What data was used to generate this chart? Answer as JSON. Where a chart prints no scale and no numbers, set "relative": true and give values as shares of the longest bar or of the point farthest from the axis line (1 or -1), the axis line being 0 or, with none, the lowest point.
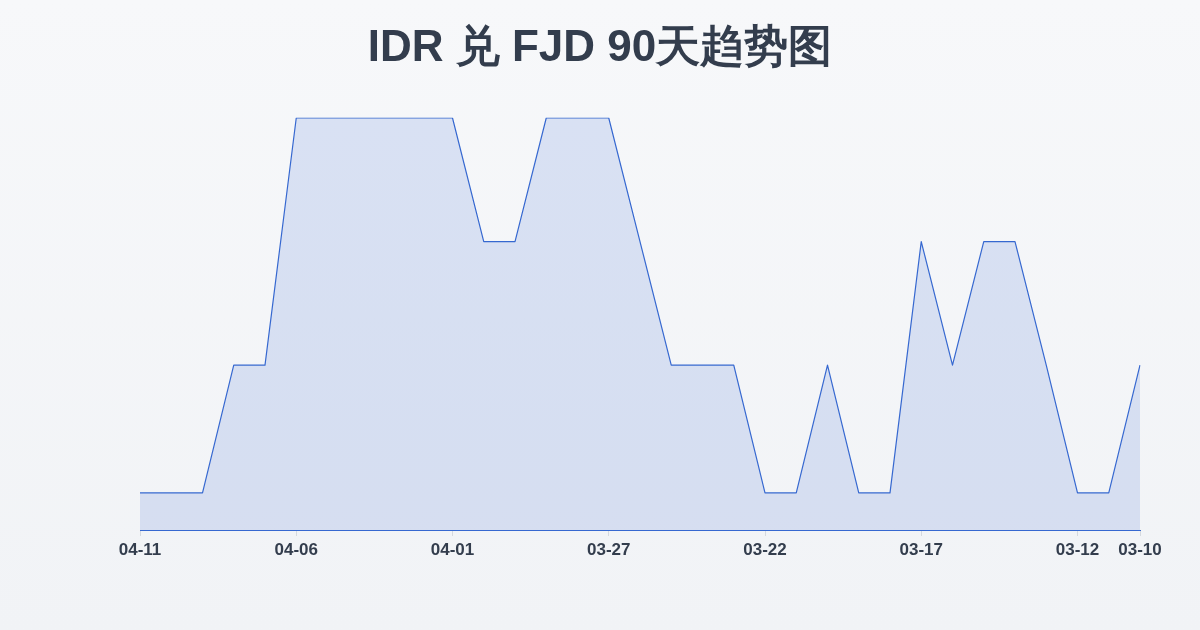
{
  "chart_data": {
    "type": "area",
    "title": "IDR 兑 FJD 90天趋势图",
    "categories": [
      "04-11",
      null,
      null,
      null,
      null,
      "04-06",
      null,
      null,
      null,
      null,
      "04-01",
      null,
      null,
      null,
      null,
      "03-27",
      null,
      null,
      null,
      null,
      "03-22",
      null,
      null,
      null,
      null,
      "03-17",
      null,
      null,
      null,
      null,
      "03-12",
      null,
      "03-10"
    ],
    "values": [
      0.09,
      0.09,
      0.09,
      0.4,
      0.4,
      1,
      1,
      1,
      1,
      1,
      1,
      0.7,
      0.7,
      1,
      1,
      1,
      0.7,
      0.4,
      0.4,
      0.4,
      0.09,
      0.09,
      0.4,
      0.09,
      0.09,
      0.7,
      0.4,
      0.7,
      0.7,
      0.4,
      0.09,
      0.09,
      0.4
    ],
    "color": "#3668d0",
    "relative": true
  }
}
